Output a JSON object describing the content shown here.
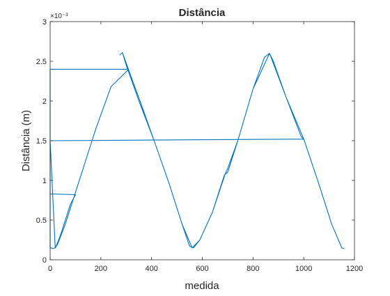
{
  "chart_data": {
    "type": "line",
    "title": "Distância",
    "xlabel": "medida",
    "ylabel": "Distância (m)",
    "xlim": [
      0,
      1200
    ],
    "ylim": [
      0,
      3
    ],
    "x_ticks": [
      "0",
      "200",
      "400",
      "600",
      "800",
      "1000",
      "1200"
    ],
    "y_ticks": [
      "0",
      "0.5",
      "1",
      "1.5",
      "2",
      "2.5",
      "3"
    ],
    "y_exponent_label": "×10⁻³",
    "y_multiplier": 0.001,
    "grid": false,
    "series": [
      {
        "color": "#0072BD",
        "points": [
          [
            0,
            0.83
          ],
          [
            100,
            0.82
          ],
          [
            100,
            0.82
          ],
          [
            80,
            0.7
          ],
          [
            60,
            0.5
          ],
          [
            45,
            0.35
          ],
          [
            30,
            0.22
          ],
          [
            20,
            0.15
          ],
          [
            10,
            0.14
          ],
          [
            5,
            0.15
          ],
          [
            0,
            0.15
          ],
          [
            0,
            2.4
          ],
          [
            310,
            2.4
          ],
          [
            310,
            2.4
          ],
          [
            240,
            2.18
          ],
          [
            180,
            1.65
          ],
          [
            120,
            1.05
          ],
          [
            60,
            0.45
          ],
          [
            30,
            0.2
          ],
          [
            20,
            0.15
          ],
          [
            0,
            1.5
          ],
          [
            1000,
            1.52
          ],
          [
            990,
            1.55
          ],
          [
            930,
            2.05
          ],
          [
            880,
            2.5
          ],
          [
            865,
            2.6
          ],
          [
            845,
            2.55
          ],
          [
            800,
            2.15
          ],
          [
            740,
            1.5
          ],
          [
            720,
            1.3
          ],
          [
            700,
            1.1
          ],
          [
            690,
            1.08
          ],
          [
            685,
            1.05
          ],
          [
            640,
            0.6
          ],
          [
            590,
            0.25
          ],
          [
            565,
            0.15
          ],
          [
            550,
            0.17
          ],
          [
            520,
            0.45
          ],
          [
            470,
            0.95
          ],
          [
            410,
            1.5
          ],
          [
            350,
            2.0
          ],
          [
            300,
            2.45
          ],
          [
            285,
            2.61
          ],
          [
            275,
            2.58
          ],
          [
            285,
            2.61
          ],
          [
            320,
            2.3
          ],
          [
            360,
            1.95
          ],
          [
            410,
            1.5
          ],
          [
            470,
            0.95
          ],
          [
            520,
            0.45
          ],
          [
            560,
            0.15
          ],
          [
            590,
            0.25
          ],
          [
            640,
            0.6
          ],
          [
            690,
            1.08
          ],
          [
            700,
            1.15
          ],
          [
            740,
            1.5
          ],
          [
            800,
            2.15
          ],
          [
            865,
            2.6
          ],
          [
            930,
            2.05
          ],
          [
            1000,
            1.52
          ],
          [
            1060,
            0.95
          ],
          [
            1110,
            0.45
          ],
          [
            1150,
            0.15
          ],
          [
            1160,
            0.14
          ]
        ]
      }
    ]
  }
}
